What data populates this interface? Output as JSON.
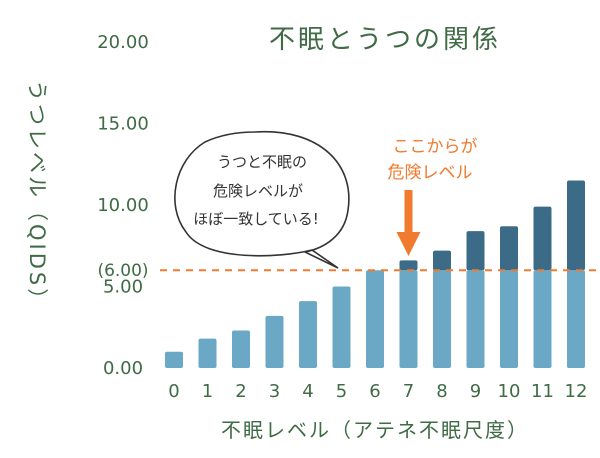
{
  "chart_data": {
    "type": "bar",
    "title": "不眠とうつの関係",
    "xlabel": "不眠レベル（アテネ不眠尺度）",
    "ylabel": "うつレベル（QIDS）",
    "categories": [
      "0",
      "1",
      "2",
      "3",
      "4",
      "5",
      "6",
      "7",
      "8",
      "9",
      "10",
      "11",
      "12"
    ],
    "values": [
      1.0,
      1.8,
      2.3,
      3.2,
      4.1,
      5.0,
      6.0,
      6.6,
      7.2,
      8.4,
      8.7,
      9.9,
      11.5
    ],
    "threshold": 6.0,
    "threshold_label": "(6.00)",
    "ylim": [
      0,
      20
    ],
    "yticks": [
      "0.00",
      "5.00",
      "10.00",
      "15.00",
      "20.00"
    ],
    "grid": false,
    "colors": {
      "bar_base": "#6aa8c6",
      "bar_above": "#3b6b87",
      "threshold_line": "#f07a2e",
      "text": "#3f6b45",
      "annotation": "#f07a2e"
    },
    "annotations": {
      "bubble_lines": [
        "うつと不眠の",
        "危険レベルが",
        "ほぼ一致している!"
      ],
      "danger_lines": [
        "ここからが",
        "危険レベル"
      ],
      "danger_category": "7"
    }
  }
}
